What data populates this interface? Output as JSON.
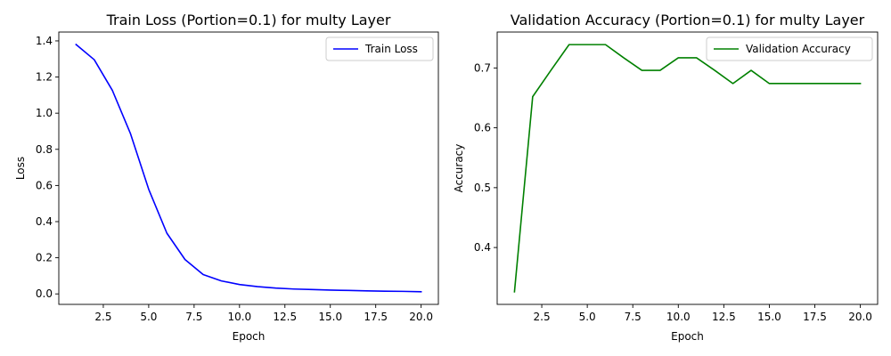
{
  "chart_data": [
    {
      "type": "line",
      "title": "Train Loss (Portion=0.1) for multy Layer",
      "xlabel": "Epoch",
      "ylabel": "Loss",
      "xlim": [
        0.05,
        20.95
      ],
      "ylim": [
        -0.058,
        1.449
      ],
      "xticks": [
        "2.5",
        "5.0",
        "7.5",
        "10.0",
        "12.5",
        "15.0",
        "17.5",
        "20.0"
      ],
      "yticks": [
        "0.0",
        "0.2",
        "0.4",
        "0.6",
        "0.8",
        "1.0",
        "1.2",
        "1.4"
      ],
      "legend": "upper right",
      "grid": false,
      "series": [
        {
          "name": "Train Loss",
          "color": "#0000ff",
          "x": [
            1,
            2,
            3,
            4,
            5,
            6,
            7,
            8,
            9,
            10,
            11,
            12,
            13,
            14,
            15,
            16,
            17,
            18,
            19,
            20
          ],
          "y": [
            1.38,
            1.296,
            1.126,
            0.886,
            0.579,
            0.336,
            0.19,
            0.107,
            0.072,
            0.052,
            0.04,
            0.032,
            0.027,
            0.024,
            0.021,
            0.019,
            0.017,
            0.015,
            0.014,
            0.012
          ]
        }
      ]
    },
    {
      "type": "line",
      "title": "Validation Accuracy (Portion=0.1) for multy Layer",
      "xlabel": "Epoch",
      "ylabel": "Accuracy",
      "xlim": [
        0.05,
        20.95
      ],
      "ylim": [
        0.305,
        0.76
      ],
      "xticks": [
        "2.5",
        "5.0",
        "7.5",
        "10.0",
        "12.5",
        "15.0",
        "17.5",
        "20.0"
      ],
      "yticks": [
        "0.4",
        "0.5",
        "0.6",
        "0.7"
      ],
      "legend": "upper right",
      "grid": false,
      "series": [
        {
          "name": "Validation Accuracy",
          "color": "#008000",
          "x": [
            1,
            2,
            3,
            4,
            5,
            6,
            7,
            8,
            9,
            10,
            11,
            12,
            13,
            14,
            15,
            16,
            17,
            18,
            19,
            20
          ],
          "y": [
            0.326,
            0.652,
            0.696,
            0.739,
            0.739,
            0.739,
            0.717,
            0.696,
            0.696,
            0.717,
            0.717,
            0.696,
            0.674,
            0.696,
            0.674,
            0.674,
            0.674,
            0.674,
            0.674,
            0.674
          ]
        }
      ]
    }
  ]
}
